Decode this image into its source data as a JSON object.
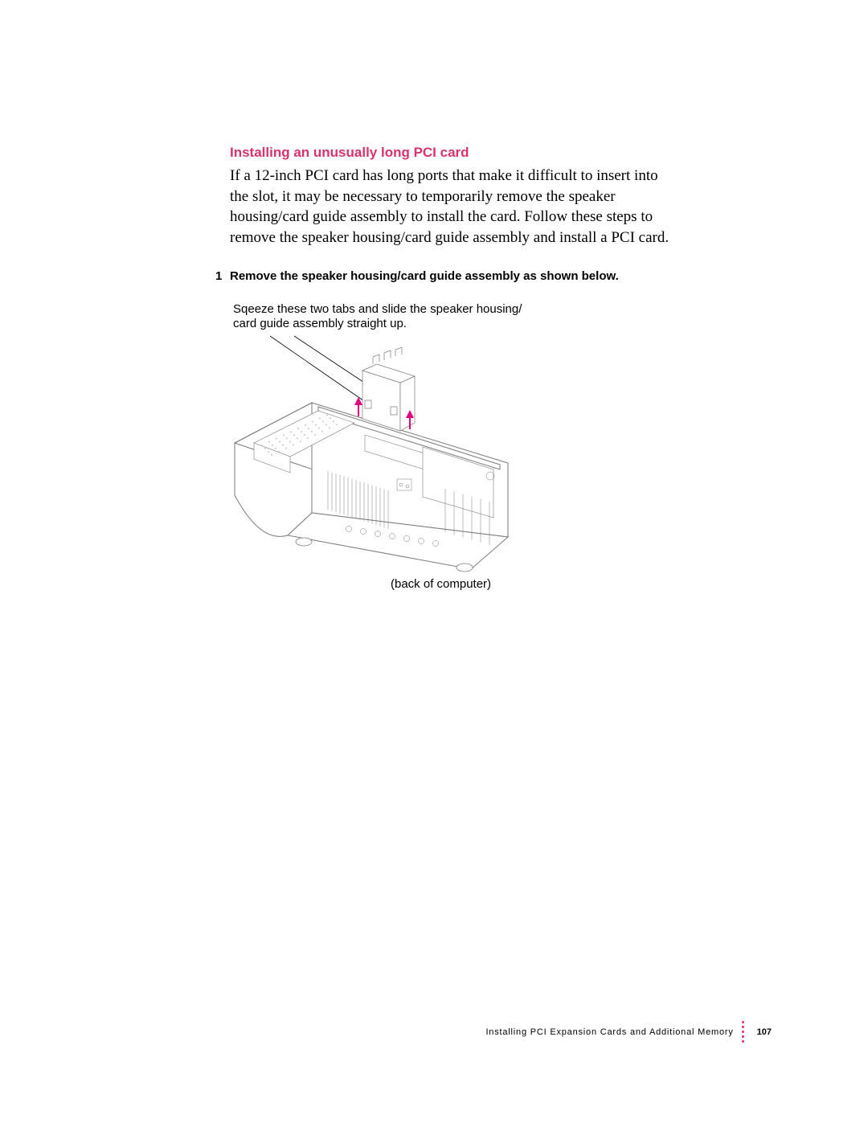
{
  "colors": {
    "accent": "#d8336a",
    "text": "#000000",
    "diagram_stroke": "#7a7a7a",
    "diagram_light": "#c8c8c8",
    "arrow": "#e6007e"
  },
  "heading": "Installing an unusually long PCI card",
  "body": "If a 12-inch PCI card has long ports that make it difficult to insert into the slot, it may be necessary to temporarily remove the speaker housing/card guide assembly to install the card. Follow these steps to remove the speaker housing/card guide assembly and install a PCI card.",
  "step_number": "1",
  "step_text": "Remove the speaker housing/card guide assembly as shown below.",
  "callout_top_line1": "Sqeeze these two tabs and slide the speaker housing/",
  "callout_top_line2": "card guide assembly straight up.",
  "callout_bottom": "(back of computer)",
  "footer_text": "Installing PCI Expansion Cards and Additional Memory",
  "page_number": "107"
}
